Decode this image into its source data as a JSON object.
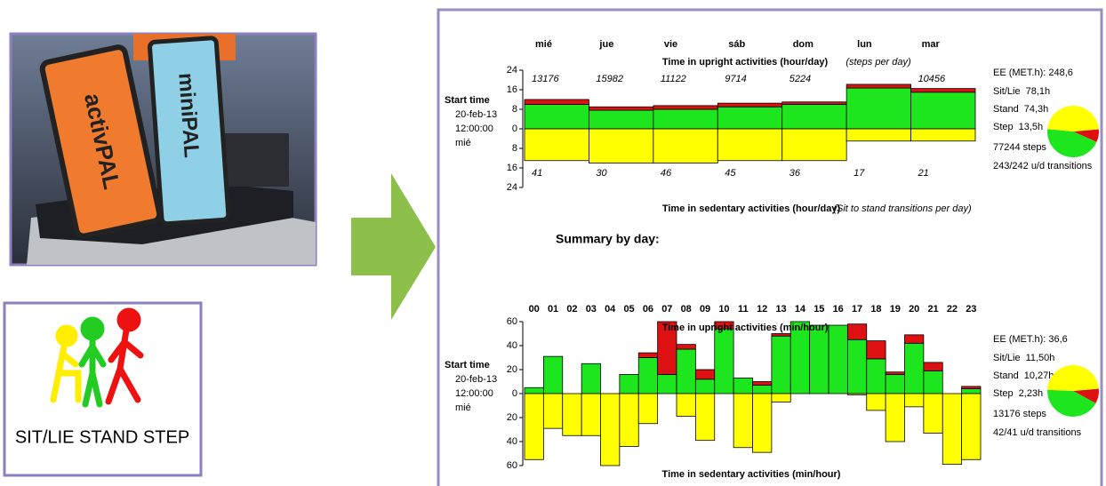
{
  "photo": {
    "device_1": "activPAL",
    "device_2": "miniPAL"
  },
  "icon_label": "SIT/LIE STAND STEP",
  "summary_heading": "Summary by day:",
  "chart_data": [
    {
      "type": "bar",
      "title": "Time in upright activities (hour/day)",
      "bottom_title": "Time in sedentary activities (hour/day)",
      "steps_note": "(steps per day)",
      "transitions_note": "(Sit to stand transitions per day)",
      "categories": [
        "mié",
        "jue",
        "vie",
        "sáb",
        "dom",
        "lun",
        "mar"
      ],
      "series": [
        {
          "color": "#1ee61e",
          "values": [
            10,
            7.6,
            8,
            9,
            10,
            16.7,
            15
          ]
        },
        {
          "color": "#dd1111",
          "values": [
            2,
            1.4,
            1.5,
            1.5,
            1,
            1.5,
            1.5
          ]
        },
        {
          "color": "#ffff00",
          "values": [
            -13,
            -14,
            -14,
            -13,
            -13,
            -5,
            -5
          ]
        }
      ],
      "steps": [
        13176,
        15982,
        11122,
        9714,
        5224,
        null,
        10456
      ],
      "transitions": [
        41,
        30,
        46,
        45,
        36,
        17,
        21
      ],
      "ylim": [
        -24,
        24
      ],
      "yticks": [
        {
          "value": -24,
          "label": "24"
        },
        {
          "value": -16,
          "label": "16"
        },
        {
          "value": -8,
          "label": "8"
        },
        0,
        8,
        16,
        24
      ],
      "start": [
        "Start time",
        "20-feb-13",
        "12:00:00",
        "mié"
      ],
      "summary": {
        "ee": "EE (MET.h): 248,6",
        "pie": [
          {
            "label": "Sit/Lie",
            "value": 78.1,
            "value_label": "78,1h",
            "color": "#ffff00"
          },
          {
            "label": "Stand",
            "value": 74.3,
            "value_label": "74,3h",
            "color": "#1ee61e"
          },
          {
            "label": "Step",
            "value": 13.5,
            "value_label": "13,5h",
            "color": "#dd1111"
          }
        ],
        "steps": "77244 steps",
        "transitions": "243/242 u/d transitions"
      }
    },
    {
      "type": "bar",
      "title": "Time in upright activities (min/hour)",
      "bottom_title": "Time in sedentary activities (min/hour)",
      "categories": [
        "00",
        "01",
        "02",
        "03",
        "04",
        "05",
        "06",
        "07",
        "08",
        "09",
        "10",
        "11",
        "12",
        "13",
        "14",
        "15",
        "16",
        "17",
        "18",
        "19",
        "20",
        "21",
        "22",
        "23"
      ],
      "series": [
        {
          "color": "#1ee61e",
          "values": [
            5,
            31,
            0,
            25,
            0,
            16,
            30,
            16,
            37,
            12,
            54,
            13,
            7,
            48,
            60,
            57,
            57,
            45,
            29,
            16,
            42,
            19,
            0,
            4
          ]
        },
        {
          "color": "#dd1111",
          "values": [
            0,
            0,
            0,
            0,
            0,
            0,
            4,
            44,
            4,
            8,
            6,
            0,
            3,
            2,
            0,
            0,
            0,
            13,
            15,
            2,
            7,
            7,
            0,
            2
          ]
        },
        {
          "color": "#ffff00",
          "values": [
            -55,
            -29,
            -35,
            -35,
            -60,
            -44,
            -25,
            0,
            -19,
            -39,
            0,
            -45,
            -49,
            -7,
            0,
            0,
            0,
            -1,
            -14,
            -40,
            -11,
            -33,
            -59,
            -55
          ]
        }
      ],
      "ylim": [
        -60,
        60
      ],
      "yticks": [
        {
          "value": -60,
          "label": "60"
        },
        {
          "value": -40,
          "label": "40"
        },
        {
          "value": -20,
          "label": "20"
        },
        0,
        20,
        40,
        60
      ],
      "start": [
        "Start time",
        "20-feb-13",
        "12:00:00",
        "mié"
      ],
      "summary": {
        "ee": "EE (MET.h): 36,6",
        "pie": [
          {
            "label": "Sit/Lie",
            "value": 11.5,
            "value_label": "11,50h",
            "color": "#ffff00"
          },
          {
            "label": "Stand",
            "value": 10.27,
            "value_label": "10,27h",
            "color": "#1ee61e"
          },
          {
            "label": "Step",
            "value": 2.23,
            "value_label": "2,23h",
            "color": "#dd1111"
          }
        ],
        "steps": "13176 steps",
        "transitions": "42/41 u/d transitions"
      }
    }
  ]
}
